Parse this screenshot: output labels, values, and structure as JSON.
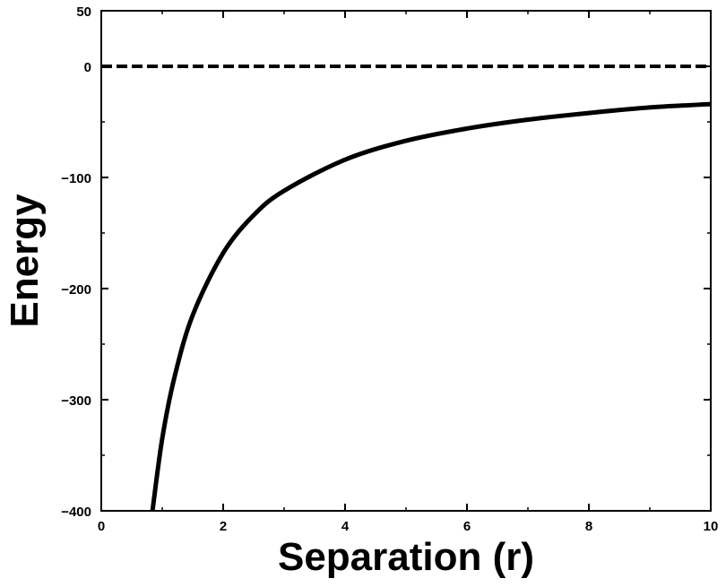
{
  "chart_data": {
    "type": "line",
    "title": "",
    "xlabel": "Separation (r)",
    "ylabel": "Energy",
    "xlim": [
      0,
      10
    ],
    "ylim": [
      -400,
      50
    ],
    "xticks": [
      0,
      2,
      4,
      6,
      8,
      10
    ],
    "yticks": [
      -400,
      -300,
      -200,
      -100,
      0,
      50
    ],
    "xtick_labels": [
      "0",
      "2",
      "4",
      "6",
      "8",
      "10"
    ],
    "ytick_labels": [
      "−400",
      "−300",
      "−200",
      "−100",
      "0",
      "50"
    ],
    "grid": false,
    "series": [
      {
        "style": "solid",
        "color": "#000000",
        "x": [
          0.84,
          1.0,
          1.2,
          1.5,
          2.0,
          2.5,
          3.0,
          4.0,
          5.0,
          6.0,
          7.0,
          8.0,
          9.0,
          10.0
        ],
        "y": [
          -400,
          -335,
          -280,
          -224,
          -168,
          -134,
          -112,
          -84,
          -67,
          -56,
          -48,
          -42,
          -37,
          -34
        ]
      }
    ],
    "reference_lines": [
      {
        "axis": "y",
        "value": 0,
        "style": "dashed",
        "color": "#000000"
      }
    ]
  }
}
